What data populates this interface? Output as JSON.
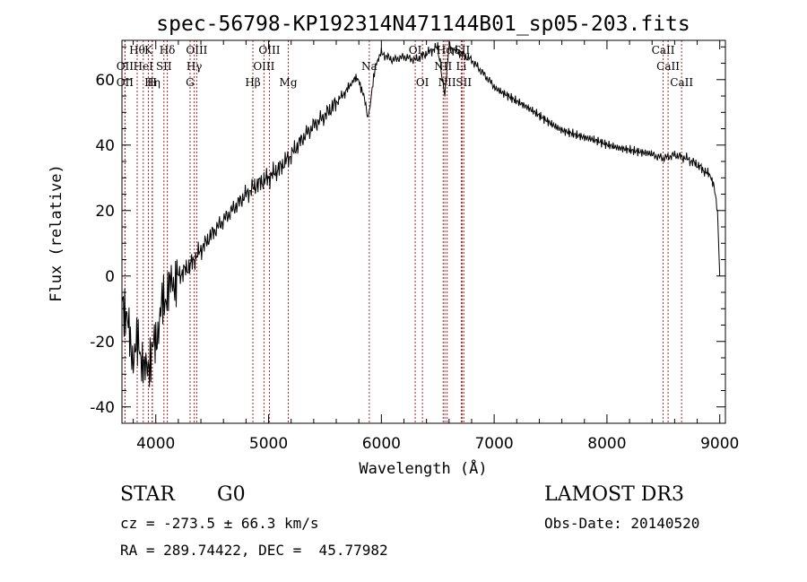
{
  "chart_data": {
    "type": "line",
    "title": "spec-56798-KP192314N471144B01_sp05-203.fits",
    "xlabel": "Wavelength (Å)",
    "ylabel": "Flux (relative)",
    "xlim": [
      3700,
      9050
    ],
    "ylim": [
      -45,
      72
    ],
    "x_ticks": [
      4000,
      5000,
      6000,
      7000,
      8000,
      9000
    ],
    "y_ticks": [
      -40,
      -20,
      0,
      20,
      40,
      60
    ],
    "grid": false,
    "series": [
      {
        "name": "flux",
        "x": [
          3700,
          3750,
          3800,
          3850,
          3900,
          3950,
          4000,
          4050,
          4100,
          4150,
          4200,
          4300,
          4400,
          4500,
          4600,
          4700,
          4800,
          4900,
          5000,
          5100,
          5200,
          5300,
          5400,
          5500,
          5600,
          5700,
          5750,
          5800,
          5850,
          5880,
          5900,
          5950,
          6000,
          6100,
          6200,
          6300,
          6400,
          6500,
          6563,
          6600,
          6700,
          6800,
          6900,
          7000,
          7200,
          7400,
          7600,
          7800,
          8000,
          8200,
          8400,
          8500,
          8600,
          8700,
          8800,
          8900,
          8950,
          8980,
          9000
        ],
        "values": [
          -5,
          -15,
          -25,
          -20,
          -30,
          -25,
          -20,
          -10,
          -5,
          -2,
          0,
          3,
          8,
          13,
          17,
          21,
          25,
          28,
          30,
          33,
          37,
          42,
          46,
          49,
          53,
          57,
          60,
          60,
          54,
          48,
          52,
          65,
          68,
          66,
          67,
          66,
          68,
          70,
          55,
          70,
          68,
          66,
          62,
          58,
          53,
          49,
          45,
          42,
          40,
          39,
          37,
          36,
          37,
          36,
          34,
          31,
          28,
          20,
          0
        ]
      }
    ],
    "line_markers": [
      {
        "name": "H9",
        "x": 3835,
        "row": 0,
        "label": "Hθ"
      },
      {
        "name": "K",
        "x": 3934,
        "row": 0,
        "label": "K"
      },
      {
        "name": "Hd",
        "x": 4102,
        "row": 0,
        "label": "Hδ"
      },
      {
        "name": "OII",
        "x": 3727,
        "row": 1,
        "label": "OII"
      },
      {
        "name": "HeI",
        "x": 3889,
        "row": 1,
        "label": "HeI"
      },
      {
        "name": "SII",
        "x": 4072,
        "row": 1,
        "label": "SII"
      },
      {
        "name": "OII_b",
        "x": 3727,
        "row": 2,
        "label": "OII"
      },
      {
        "name": "He",
        "x": 3970,
        "row": 2,
        "label": "Hη"
      },
      {
        "name": "H",
        "x": 3968,
        "row": 2,
        "label": "H"
      },
      {
        "name": "OIII_4363",
        "x": 4363,
        "row": 0,
        "label": "OIII"
      },
      {
        "name": "Hg",
        "x": 4341,
        "row": 1,
        "label": "Hγ"
      },
      {
        "name": "G",
        "x": 4304,
        "row": 2,
        "label": "G"
      },
      {
        "name": "OIII_5007",
        "x": 5007,
        "row": 0,
        "label": "OIII"
      },
      {
        "name": "OIII_4959",
        "x": 4959,
        "row": 1,
        "label": "OIII"
      },
      {
        "name": "Hb",
        "x": 4861,
        "row": 2,
        "label": "Hβ"
      },
      {
        "name": "Mg",
        "x": 5175,
        "row": 2,
        "label": "Mg"
      },
      {
        "name": "Na",
        "x": 5893,
        "row": 1,
        "label": "Na"
      },
      {
        "name": "OI_6300",
        "x": 6300,
        "row": 0,
        "label": "OI"
      },
      {
        "name": "OI_6364",
        "x": 6364,
        "row": 2,
        "label": "OI"
      },
      {
        "name": "NII_6548",
        "x": 6548,
        "row": 1,
        "label": "NII"
      },
      {
        "name": "Ha",
        "x": 6563,
        "row": 0,
        "label": "Hα"
      },
      {
        "name": "NII_6583",
        "x": 6583,
        "row": 2,
        "label": "NII"
      },
      {
        "name": "SII_6716",
        "x": 6716,
        "row": 0,
        "label": "SII"
      },
      {
        "name": "Li",
        "x": 6708,
        "row": 1,
        "label": "Li"
      },
      {
        "name": "SII_6731",
        "x": 6731,
        "row": 2,
        "label": "SII"
      },
      {
        "name": "CaII_8498",
        "x": 8498,
        "row": 0,
        "label": "CaII"
      },
      {
        "name": "CaII_8542",
        "x": 8542,
        "row": 1,
        "label": "CaII"
      },
      {
        "name": "CaII_8662",
        "x": 8662,
        "row": 2,
        "label": "CaII"
      }
    ]
  },
  "info": {
    "object_class": "STAR",
    "subclass": "G0",
    "survey": "LAMOST DR3",
    "velocity": "cz = -273.5 ± 66.3 km/s",
    "obs_date": "Obs-Date: 20140520",
    "coords": "RA = 289.74422, DEC =  45.77982"
  }
}
